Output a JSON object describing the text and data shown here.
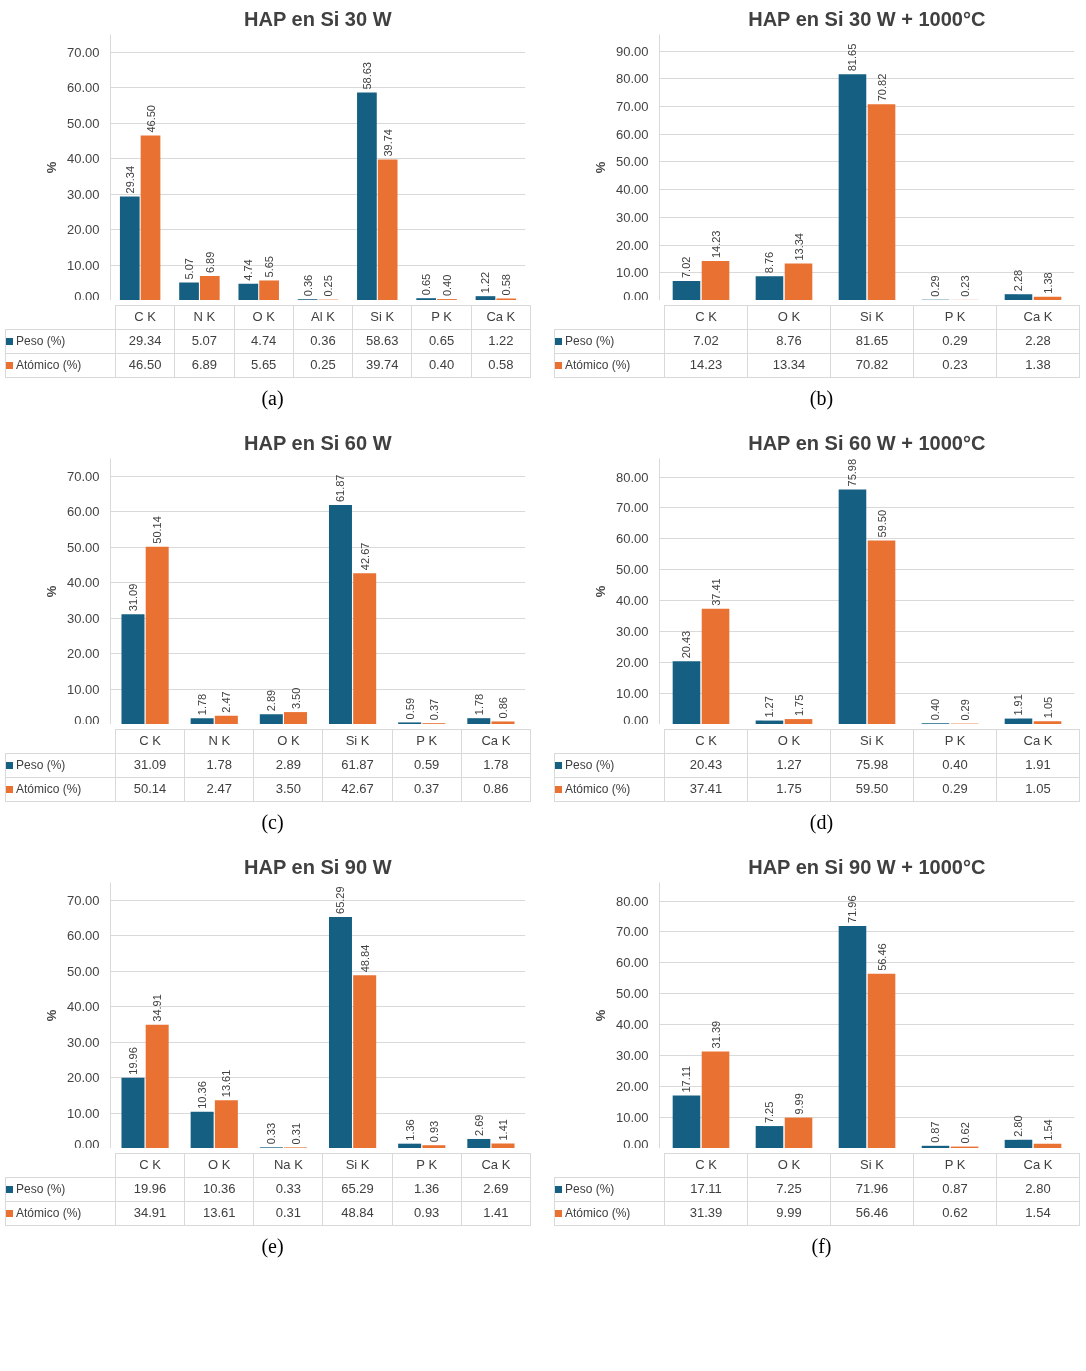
{
  "chart_data": [
    {
      "type": "bar",
      "title": "HAP en Si 30 W",
      "ylabel": "%",
      "categories": [
        "C K",
        "N K",
        "O K",
        "Al K",
        "Si K",
        "P K",
        "Ca K"
      ],
      "series": [
        {
          "name": "Peso (%)",
          "color": "#156082",
          "values": [
            29.34,
            5.07,
            4.74,
            0.36,
            58.63,
            0.65,
            1.22
          ],
          "value_labels": [
            "29.34",
            "5.07",
            "4.74",
            "0.36",
            "58.63",
            "0.65",
            "1.22"
          ]
        },
        {
          "name": "Atómico (%)",
          "color": "#e97132",
          "values": [
            46.5,
            6.89,
            5.65,
            0.25,
            39.74,
            0.4,
            0.58
          ],
          "value_labels": [
            "46.50",
            "6.89",
            "5.65",
            "0.25",
            "39.74",
            "0.40",
            "0.58"
          ]
        }
      ],
      "ylim": [
        0,
        75
      ],
      "yticks": [
        {
          "value": 0,
          "label": "0.00"
        },
        {
          "value": 10,
          "label": "10.00"
        },
        {
          "value": 20,
          "label": "20.00"
        },
        {
          "value": 30,
          "label": "30.00"
        },
        {
          "value": 40,
          "label": "40.00"
        },
        {
          "value": 50,
          "label": "50.00"
        },
        {
          "value": 60,
          "label": "60.00"
        },
        {
          "value": 70,
          "label": "70.00"
        }
      ],
      "grid": "y",
      "legend": "bottom",
      "annotations": [
        "(a)"
      ]
    },
    {
      "type": "bar",
      "title": "HAP en Si 30 W + 1000°C",
      "ylabel": "%",
      "categories": [
        "C K",
        "O K",
        "Si K",
        "P K",
        "Ca K"
      ],
      "series": [
        {
          "name": "Peso (%)",
          "color": "#156082",
          "values": [
            7.02,
            8.76,
            81.65,
            0.29,
            2.28
          ],
          "value_labels": [
            "7.02",
            "8.76",
            "81.65",
            "0.29",
            "2.28"
          ]
        },
        {
          "name": "Atómico (%)",
          "color": "#e97132",
          "values": [
            14.23,
            13.34,
            70.82,
            0.23,
            1.38
          ],
          "value_labels": [
            "14.23",
            "13.34",
            "70.82",
            "0.23",
            "1.38"
          ]
        }
      ],
      "ylim": [
        0,
        96
      ],
      "yticks": [
        {
          "value": 0,
          "label": "0.00"
        },
        {
          "value": 10,
          "label": "10.00"
        },
        {
          "value": 20,
          "label": "20.00"
        },
        {
          "value": 30,
          "label": "30.00"
        },
        {
          "value": 40,
          "label": "40.00"
        },
        {
          "value": 50,
          "label": "50.00"
        },
        {
          "value": 60,
          "label": "60.00"
        },
        {
          "value": 70,
          "label": "70.00"
        },
        {
          "value": 80,
          "label": "80.00"
        },
        {
          "value": 90,
          "label": "90.00"
        }
      ],
      "grid": "y",
      "legend": "bottom",
      "annotations": [
        "(b)"
      ]
    },
    {
      "type": "bar",
      "title": "HAP en Si 60 W",
      "ylabel": "%",
      "categories": [
        "C K",
        "N K",
        "O K",
        "Si K",
        "P K",
        "Ca K"
      ],
      "series": [
        {
          "name": "Peso (%)",
          "color": "#156082",
          "values": [
            31.09,
            1.78,
            2.89,
            61.87,
            0.59,
            1.78
          ],
          "value_labels": [
            "31.09",
            "1.78",
            "2.89",
            "61.87",
            "0.59",
            "1.78"
          ]
        },
        {
          "name": "Atómico (%)",
          "color": "#e97132",
          "values": [
            50.14,
            2.47,
            3.5,
            42.67,
            0.37,
            0.86
          ],
          "value_labels": [
            "50.14",
            "2.47",
            "3.50",
            "42.67",
            "0.37",
            "0.86"
          ]
        }
      ],
      "ylim": [
        0,
        75
      ],
      "yticks": [
        {
          "value": 0,
          "label": "0.00"
        },
        {
          "value": 10,
          "label": "10.00"
        },
        {
          "value": 20,
          "label": "20.00"
        },
        {
          "value": 30,
          "label": "30.00"
        },
        {
          "value": 40,
          "label": "40.00"
        },
        {
          "value": 50,
          "label": "50.00"
        },
        {
          "value": 60,
          "label": "60.00"
        },
        {
          "value": 70,
          "label": "70.00"
        }
      ],
      "grid": "y",
      "legend": "bottom",
      "annotations": [
        "(c)"
      ]
    },
    {
      "type": "bar",
      "title": "HAP en Si 60 W + 1000°C",
      "ylabel": "%",
      "categories": [
        "C K",
        "O K",
        "Si K",
        "P K",
        "Ca K"
      ],
      "series": [
        {
          "name": "Peso (%)",
          "color": "#156082",
          "values": [
            20.43,
            1.27,
            75.98,
            0.4,
            1.91
          ],
          "value_labels": [
            "20.43",
            "1.27",
            "75.98",
            "0.40",
            "1.91"
          ]
        },
        {
          "name": "Atómico (%)",
          "color": "#e97132",
          "values": [
            37.41,
            1.75,
            59.5,
            0.29,
            1.05
          ],
          "value_labels": [
            "37.41",
            "1.75",
            "59.50",
            "0.29",
            "1.05"
          ]
        }
      ],
      "ylim": [
        0,
        86
      ],
      "yticks": [
        {
          "value": 0,
          "label": "0.00"
        },
        {
          "value": 10,
          "label": "10.00"
        },
        {
          "value": 20,
          "label": "20.00"
        },
        {
          "value": 30,
          "label": "30.00"
        },
        {
          "value": 40,
          "label": "40.00"
        },
        {
          "value": 50,
          "label": "50.00"
        },
        {
          "value": 60,
          "label": "60.00"
        },
        {
          "value": 70,
          "label": "70.00"
        },
        {
          "value": 80,
          "label": "80.00"
        }
      ],
      "grid": "y",
      "legend": "bottom",
      "annotations": [
        "(d)"
      ]
    },
    {
      "type": "bar",
      "title": "HAP en Si 90 W",
      "ylabel": "%",
      "categories": [
        "C K",
        "O K",
        "Na K",
        "Si K",
        "P K",
        "Ca K"
      ],
      "series": [
        {
          "name": "Peso (%)",
          "color": "#156082",
          "values": [
            19.96,
            10.36,
            0.33,
            65.29,
            1.36,
            2.69
          ],
          "value_labels": [
            "19.96",
            "10.36",
            "0.33",
            "65.29",
            "1.36",
            "2.69"
          ]
        },
        {
          "name": "Atómico (%)",
          "color": "#e97132",
          "values": [
            34.91,
            13.61,
            0.31,
            48.84,
            0.93,
            1.41
          ],
          "value_labels": [
            "34.91",
            "13.61",
            "0.31",
            "48.84",
            "0.93",
            "1.41"
          ]
        }
      ],
      "ylim": [
        0,
        75
      ],
      "yticks": [
        {
          "value": 0,
          "label": "0.00"
        },
        {
          "value": 10,
          "label": "10.00"
        },
        {
          "value": 20,
          "label": "20.00"
        },
        {
          "value": 30,
          "label": "30.00"
        },
        {
          "value": 40,
          "label": "40.00"
        },
        {
          "value": 50,
          "label": "50.00"
        },
        {
          "value": 60,
          "label": "60.00"
        },
        {
          "value": 70,
          "label": "70.00"
        }
      ],
      "grid": "y",
      "legend": "bottom",
      "annotations": [
        "(e)"
      ]
    },
    {
      "type": "bar",
      "title": "HAP en Si 90 W + 1000°C",
      "ylabel": "%",
      "categories": [
        "C K",
        "O K",
        "Si K",
        "P K",
        "Ca K"
      ],
      "series": [
        {
          "name": "Peso (%)",
          "color": "#156082",
          "values": [
            17.11,
            7.25,
            71.96,
            0.87,
            2.8
          ],
          "value_labels": [
            "17.11",
            "7.25",
            "71.96",
            "0.87",
            "2.80"
          ]
        },
        {
          "name": "Atómico (%)",
          "color": "#e97132",
          "values": [
            31.39,
            9.99,
            56.46,
            0.62,
            1.54
          ],
          "value_labels": [
            "31.39",
            "9.99",
            "56.46",
            "0.62",
            "1.54"
          ]
        }
      ],
      "ylim": [
        0,
        86
      ],
      "yticks": [
        {
          "value": 0,
          "label": "0.00"
        },
        {
          "value": 10,
          "label": "10.00"
        },
        {
          "value": 20,
          "label": "20.00"
        },
        {
          "value": 30,
          "label": "30.00"
        },
        {
          "value": 40,
          "label": "40.00"
        },
        {
          "value": 50,
          "label": "50.00"
        },
        {
          "value": 60,
          "label": "60.00"
        },
        {
          "value": 70,
          "label": "70.00"
        },
        {
          "value": 80,
          "label": "80.00"
        }
      ],
      "grid": "y",
      "legend": "bottom",
      "annotations": [
        "(f)"
      ]
    }
  ]
}
